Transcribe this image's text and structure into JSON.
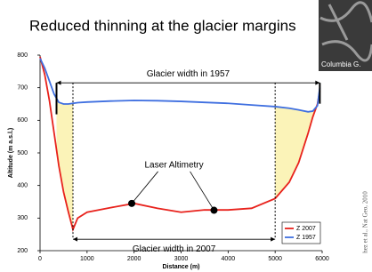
{
  "chart_data": {
    "type": "line",
    "title": "Reduced thinning at the glacier margins",
    "photo_label": "Columbia G.",
    "citation": "hez et al., Nat Geo, 2010",
    "xlabel": "Distance (m)",
    "ylabel": "Altitude (m a.s.l.)",
    "x": [
      0,
      100,
      200,
      300,
      400,
      500,
      600,
      700,
      800,
      1000,
      1500,
      2000,
      2500,
      3000,
      3500,
      4000,
      4500,
      5000,
      5300,
      5500,
      5700,
      5800,
      5900,
      5950
    ],
    "series": [
      {
        "name": "Z 2007",
        "color": "#e8221c",
        "values": [
          795,
          740,
          660,
          560,
          460,
          380,
          320,
          265,
          300,
          318,
          332,
          345,
          330,
          318,
          325,
          325,
          330,
          360,
          410,
          470,
          560,
          610,
          650,
          690
        ]
      },
      {
        "name": "Z 1957",
        "color": "#3f6fe0",
        "values": [
          790,
          760,
          720,
          680,
          655,
          650,
          650,
          652,
          654,
          656,
          659,
          661,
          660,
          658,
          655,
          652,
          647,
          642,
          637,
          632,
          626,
          628,
          645,
          700
        ]
      }
    ],
    "xlim": [
      0,
      6000
    ],
    "xticks": [
      0,
      1000,
      2000,
      3000,
      4000,
      5000,
      6000
    ],
    "ylim": [
      200,
      800
    ],
    "yticks": [
      200,
      300,
      400,
      500,
      600,
      700,
      800
    ],
    "width_1957": {
      "label": "Glacier width in 1957",
      "x": [
        350,
        5950
      ],
      "y": 715
    },
    "width_2007": {
      "label": "Glacier width in 2007",
      "x": [
        700,
        5000
      ],
      "y": 235
    },
    "laser": {
      "label": "Laser Altimetry",
      "x": 2850,
      "y": 462,
      "points_x": [
        1950,
        3700
      ],
      "points_y": [
        345,
        324
      ]
    },
    "shade_color": "#fbf3b8",
    "legend": "lower right"
  }
}
